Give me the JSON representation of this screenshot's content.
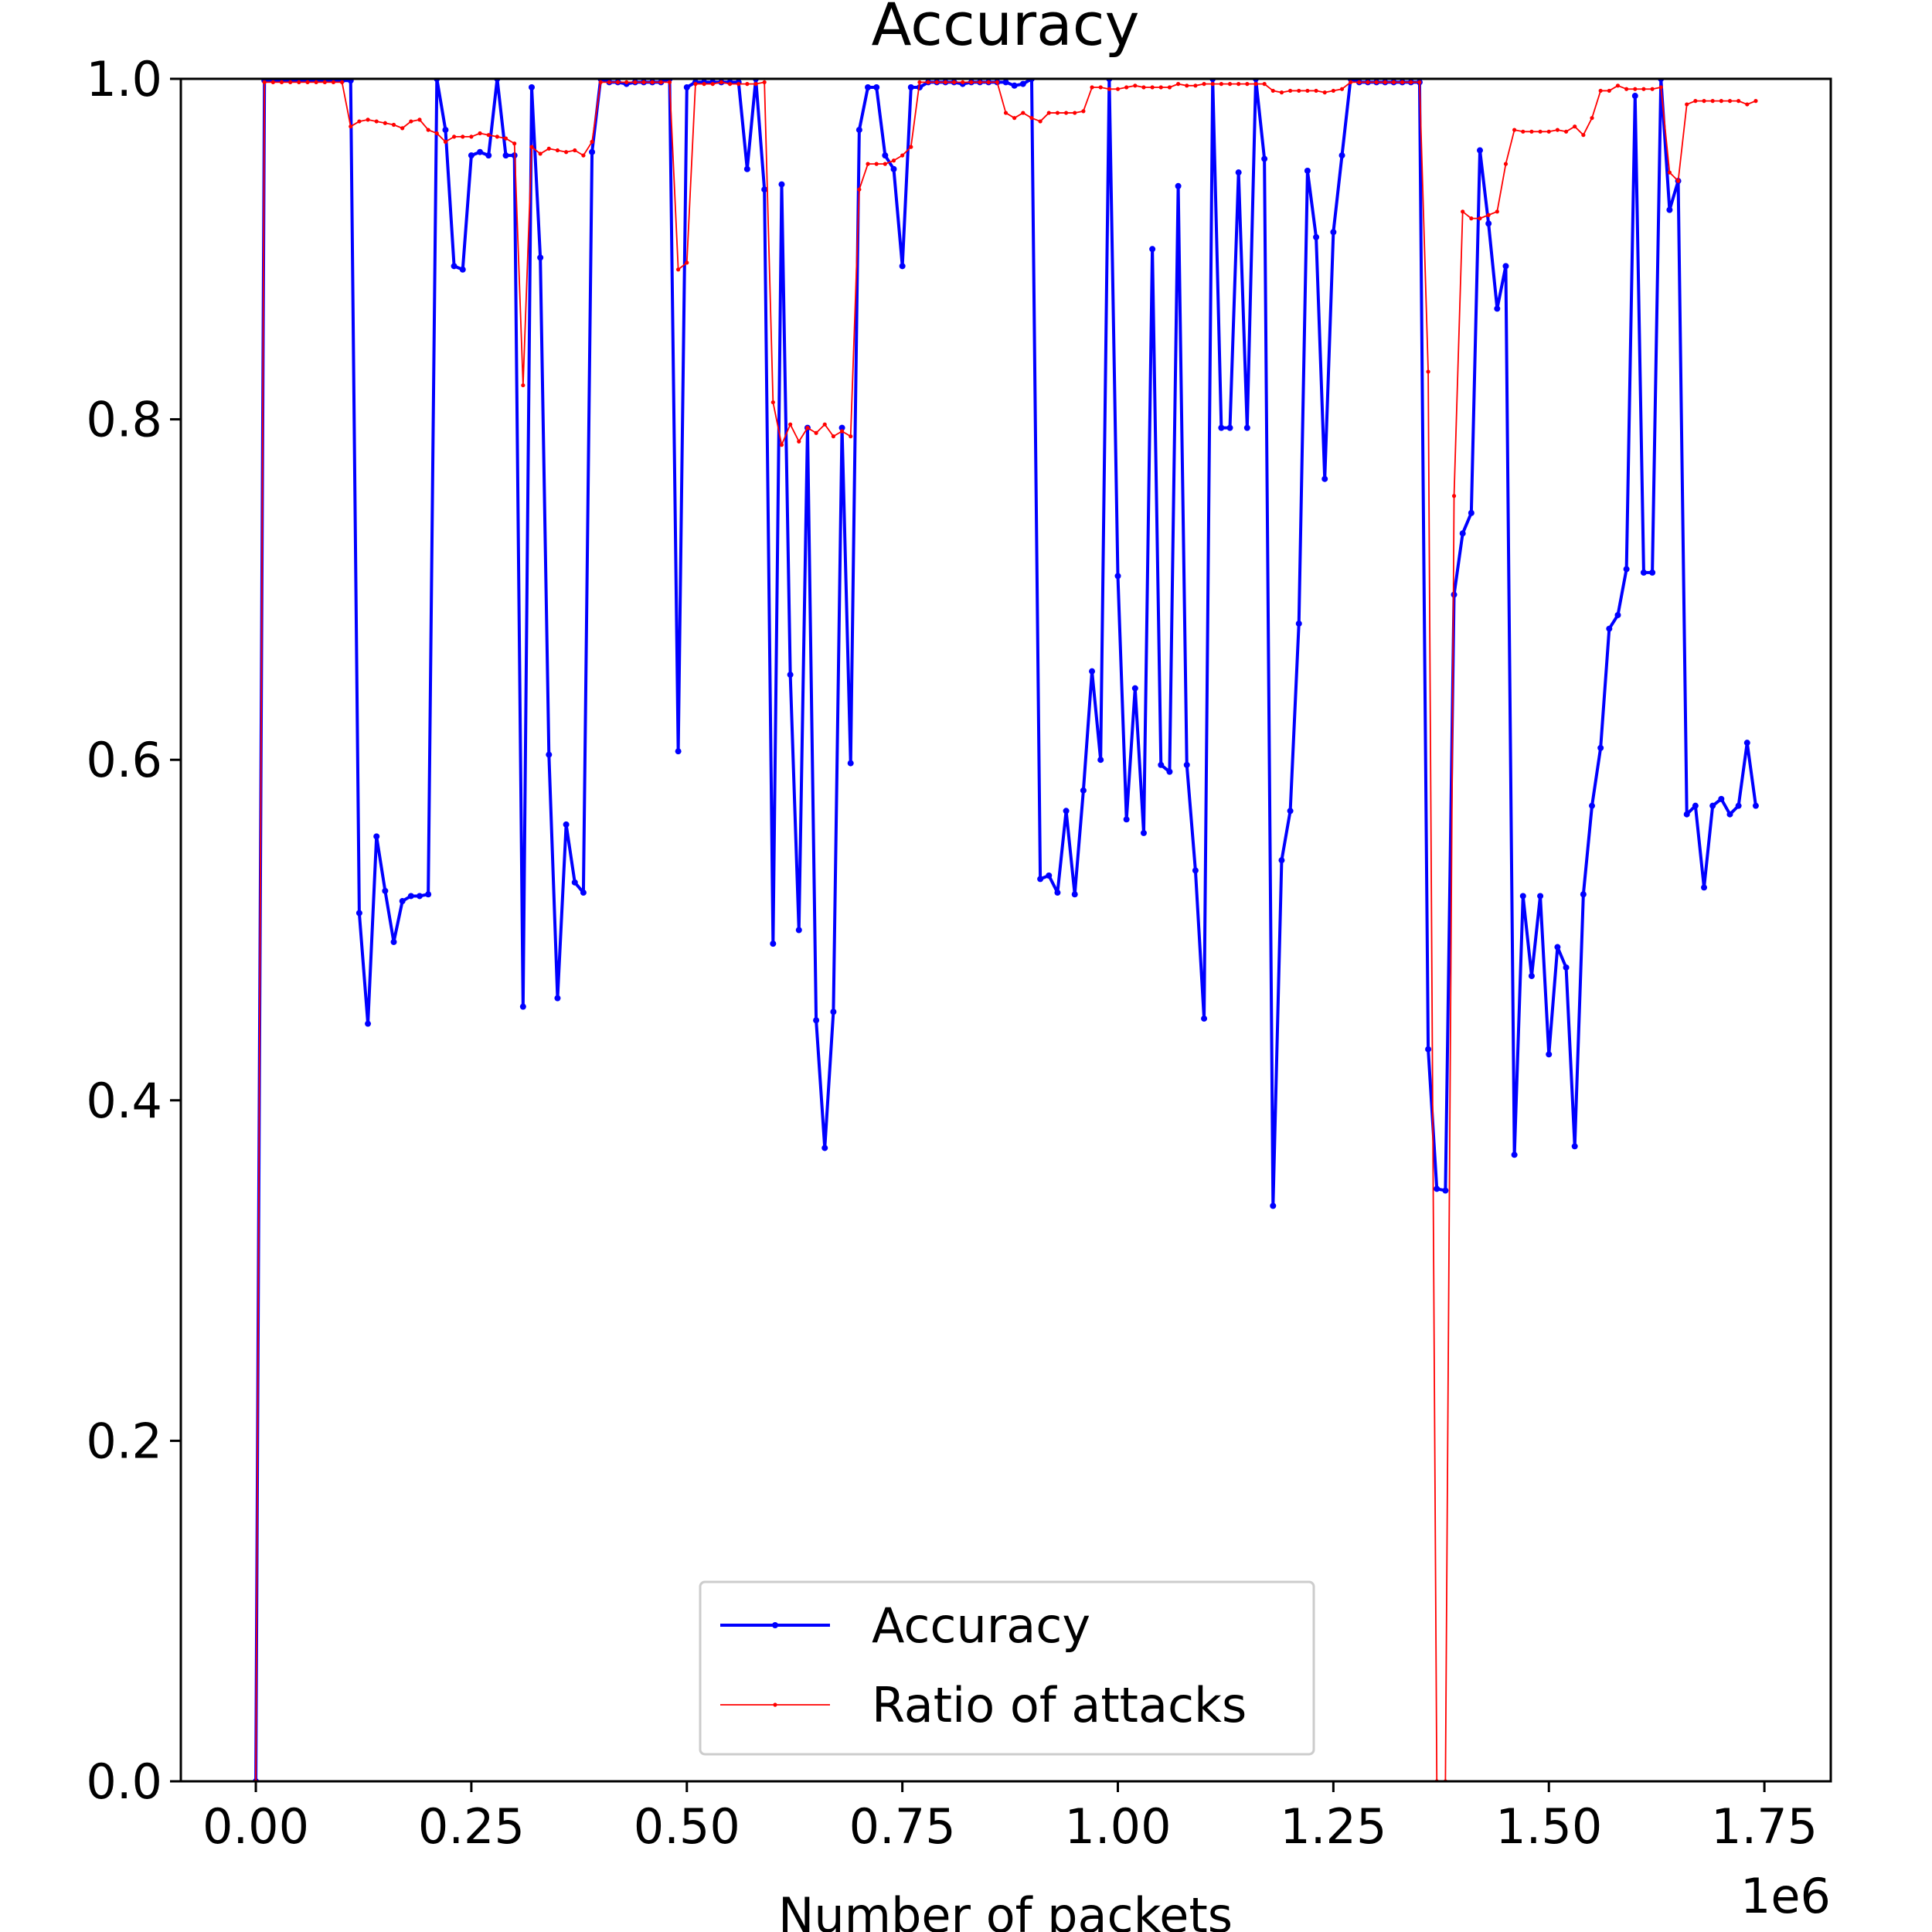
{
  "chart_data": {
    "type": "line",
    "title": "Accuracy",
    "xlabel": "Number of packets",
    "x_offset_label": "1e6",
    "legend": "lower center",
    "xlim": [
      -0.087,
      1.827
    ],
    "ylim": [
      0,
      1
    ],
    "xticks": [
      {
        "value": 0,
        "label": "0.00"
      },
      {
        "value": 0.25,
        "label": "0.25"
      },
      {
        "value": 0.5,
        "label": "0.50"
      },
      {
        "value": 0.75,
        "label": "0.75"
      },
      {
        "value": 1,
        "label": "1.00"
      },
      {
        "value": 1.25,
        "label": "1.25"
      },
      {
        "value": 1.5,
        "label": "1.50"
      },
      {
        "value": 1.75,
        "label": "1.75"
      }
    ],
    "yticks": [
      {
        "value": 0,
        "label": "0.0"
      },
      {
        "value": 0.2,
        "label": "0.2"
      },
      {
        "value": 0.4,
        "label": "0.4"
      },
      {
        "value": 0.6,
        "label": "0.6"
      },
      {
        "value": 0.8,
        "label": "0.8"
      },
      {
        "value": 1,
        "label": "1.0"
      }
    ],
    "x": [
      0,
      0.01,
      0.02,
      0.03,
      0.04,
      0.05,
      0.06,
      0.07,
      0.08,
      0.09,
      0.1,
      0.11,
      0.12,
      0.13,
      0.14,
      0.15,
      0.16,
      0.17,
      0.18,
      0.19,
      0.2,
      0.21,
      0.22,
      0.23,
      0.24,
      0.25,
      0.26,
      0.27,
      0.28,
      0.29,
      0.3,
      0.31,
      0.32,
      0.33,
      0.34,
      0.35,
      0.36,
      0.37,
      0.38,
      0.39,
      0.4,
      0.41,
      0.42,
      0.43,
      0.44,
      0.45,
      0.46,
      0.47,
      0.48,
      0.49,
      0.5,
      0.51,
      0.52,
      0.53,
      0.54,
      0.55,
      0.56,
      0.57,
      0.58,
      0.59,
      0.6,
      0.61,
      0.62,
      0.63,
      0.64,
      0.65,
      0.66,
      0.67,
      0.68,
      0.69,
      0.7,
      0.71,
      0.72,
      0.73,
      0.74,
      0.75,
      0.76,
      0.77,
      0.78,
      0.79,
      0.8,
      0.81,
      0.82,
      0.83,
      0.84,
      0.85,
      0.86,
      0.87,
      0.88,
      0.89,
      0.9,
      0.91,
      0.92,
      0.93,
      0.94,
      0.95,
      0.96,
      0.97,
      0.98,
      0.99,
      1,
      1.01,
      1.02,
      1.03,
      1.04,
      1.05,
      1.06,
      1.07,
      1.08,
      1.09,
      1.1,
      1.11,
      1.12,
      1.13,
      1.14,
      1.15,
      1.16,
      1.17,
      1.18,
      1.19,
      1.2,
      1.21,
      1.22,
      1.23,
      1.24,
      1.25,
      1.26,
      1.27,
      1.28,
      1.29,
      1.3,
      1.31,
      1.32,
      1.33,
      1.34,
      1.35,
      1.36,
      1.37,
      1.38,
      1.39,
      1.4,
      1.41,
      1.42,
      1.43,
      1.44,
      1.45,
      1.46,
      1.47,
      1.48,
      1.49,
      1.5,
      1.51,
      1.52,
      1.53,
      1.54,
      1.55,
      1.56,
      1.57,
      1.58,
      1.59,
      1.6,
      1.61,
      1.62,
      1.63,
      1.64,
      1.65,
      1.66,
      1.67,
      1.68,
      1.69,
      1.7,
      1.71,
      1.72,
      1.73,
      1.74
    ],
    "series": [
      {
        "name": "Accuracy",
        "color": "#0000ff",
        "values": [
          0,
          0.999,
          0.999,
          0.999,
          0.999,
          0.999,
          0.999,
          0.999,
          0.999,
          0.999,
          0.999,
          0.999,
          0.51,
          0.445,
          0.555,
          0.523,
          0.493,
          0.517,
          0.52,
          0.52,
          0.521,
          1,
          0.97,
          0.89,
          0.888,
          0.955,
          0.957,
          0.955,
          1,
          0.955,
          0.955,
          0.455,
          0.995,
          0.895,
          0.603,
          0.46,
          0.562,
          0.528,
          0.522,
          0.957,
          1,
          0.998,
          0.998,
          0.997,
          0.998,
          0.998,
          0.998,
          0.998,
          1,
          0.605,
          0.995,
          0.998,
          0.998,
          0.998,
          0.998,
          0.998,
          0.998,
          0.947,
          1,
          0.935,
          0.492,
          0.938,
          0.65,
          0.5,
          0.795,
          0.447,
          0.372,
          0.452,
          0.795,
          0.598,
          0.97,
          0.995,
          0.995,
          0.955,
          0.947,
          0.89,
          0.995,
          0.995,
          0.998,
          0.998,
          0.998,
          0.998,
          0.997,
          0.998,
          0.998,
          0.998,
          0.998,
          0.998,
          0.996,
          0.997,
          1,
          0.53,
          0.532,
          0.522,
          0.57,
          0.521,
          0.582,
          0.652,
          0.6,
          1,
          0.708,
          0.565,
          0.642,
          0.557,
          0.9,
          0.597,
          0.593,
          0.937,
          0.597,
          0.535,
          0.448,
          1,
          0.795,
          0.795,
          0.945,
          0.795,
          1,
          0.953,
          0.338,
          0.541,
          0.57,
          0.68,
          0.946,
          0.907,
          0.765,
          0.91,
          0.955,
          1,
          0.998,
          0.998,
          0.998,
          0.998,
          0.998,
          0.998,
          0.998,
          0.998,
          0.43,
          0.348,
          0.347,
          0.697,
          0.733,
          0.745,
          0.958,
          0.915,
          0.865,
          0.89,
          0.368,
          0.52,
          0.473,
          0.52,
          0.427,
          0.49,
          0.478,
          0.373,
          0.521,
          0.573,
          0.607,
          0.677,
          0.685,
          0.712,
          0.99,
          0.71,
          0.71,
          1,
          0.923,
          0.94,
          0.568,
          0.573,
          0.525,
          0.573,
          0.577,
          0.568,
          0.573,
          0.61,
          0.573
        ]
      },
      {
        "name": "Ratio of attacks",
        "color": "#ff0000",
        "values": [
          0,
          0.998,
          0.998,
          0.998,
          0.998,
          0.998,
          0.998,
          0.998,
          0.998,
          0.998,
          0.998,
          0.972,
          0.975,
          0.976,
          0.975,
          0.974,
          0.973,
          0.971,
          0.975,
          0.976,
          0.97,
          0.968,
          0.963,
          0.966,
          0.966,
          0.966,
          0.968,
          0.967,
          0.966,
          0.965,
          0.962,
          0.82,
          0.96,
          0.956,
          0.959,
          0.958,
          0.957,
          0.958,
          0.955,
          0.963,
          0.998,
          0.998,
          0.998,
          0.998,
          0.998,
          0.998,
          0.998,
          0.998,
          0.998,
          0.888,
          0.892,
          0.997,
          0.997,
          0.997,
          0.998,
          0.997,
          0.997,
          0.997,
          0.997,
          0.998,
          0.81,
          0.785,
          0.797,
          0.787,
          0.795,
          0.792,
          0.797,
          0.79,
          0.793,
          0.79,
          0.935,
          0.95,
          0.95,
          0.95,
          0.952,
          0.955,
          0.96,
          0.998,
          0.998,
          0.998,
          0.998,
          0.998,
          0.998,
          0.998,
          0.998,
          0.998,
          0.998,
          0.98,
          0.977,
          0.98,
          0.977,
          0.975,
          0.98,
          0.98,
          0.98,
          0.98,
          0.981,
          0.995,
          0.995,
          0.994,
          0.994,
          0.995,
          0.996,
          0.995,
          0.995,
          0.995,
          0.995,
          0.997,
          0.996,
          0.996,
          0.997,
          0.997,
          0.997,
          0.997,
          0.997,
          0.997,
          0.997,
          0.997,
          0.993,
          0.992,
          0.993,
          0.993,
          0.993,
          0.993,
          0.992,
          0.993,
          0.994,
          0.998,
          0.998,
          0.998,
          0.998,
          0.998,
          0.998,
          0.998,
          0.998,
          0.998,
          0.828,
          0,
          0,
          0.755,
          0.922,
          0.918,
          0.918,
          0.92,
          0.922,
          0.95,
          0.97,
          0.969,
          0.969,
          0.969,
          0.969,
          0.97,
          0.969,
          0.972,
          0.967,
          0.977,
          0.993,
          0.993,
          0.996,
          0.994,
          0.994,
          0.994,
          0.994,
          0.995,
          0.945,
          0.94,
          0.985,
          0.987,
          0.987,
          0.987,
          0.987,
          0.987,
          0.987,
          0.985,
          0.987
        ]
      }
    ]
  }
}
